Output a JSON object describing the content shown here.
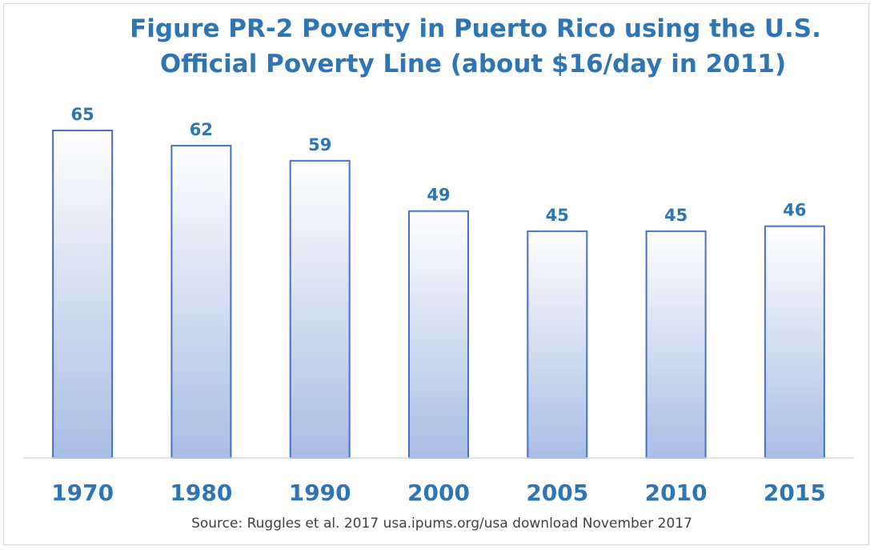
{
  "chart_data": {
    "type": "bar",
    "title_lines": [
      "Figure PR-2 Poverty in Puerto Rico using the U.S.",
      "Official Poverty Line (about $16/day in 2011)"
    ],
    "categories": [
      "1970",
      "1980",
      "1990",
      "2000",
      "2005",
      "2010",
      "2015"
    ],
    "values": [
      65,
      62,
      59,
      49,
      45,
      45,
      46
    ],
    "data_labels": [
      "65",
      "62",
      "59",
      "49",
      "45",
      "45",
      "46"
    ],
    "ylim": [
      0,
      65
    ],
    "grid": false,
    "legend": "none",
    "source": "Source: Ruggles et al. 2017 usa.ipums.org/usa download November 2017"
  },
  "colors": {
    "title": "#2e75b6",
    "bar_border": "#4472c4",
    "bar_fill_top": "#ffffff",
    "bar_fill_bottom": "#a9bde4",
    "axis": "#d9d9d9",
    "labels": "#2e75b6",
    "source": "#404040"
  }
}
